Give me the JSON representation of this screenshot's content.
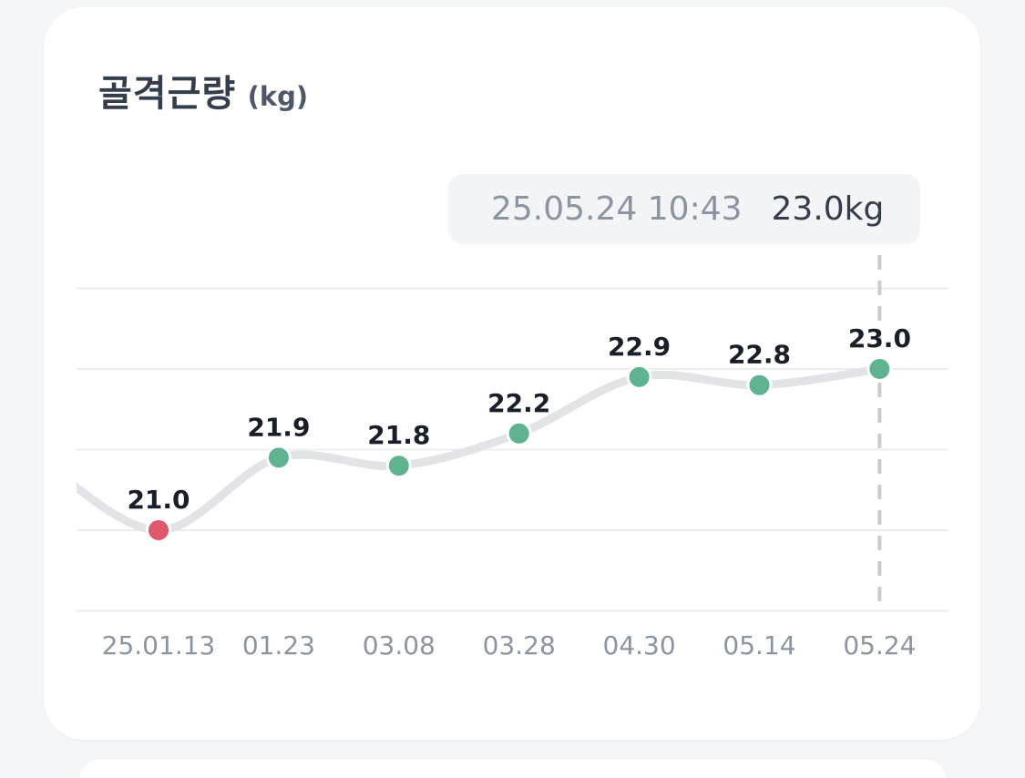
{
  "card": {
    "title": "골격근량",
    "unit": "(kg)"
  },
  "tooltip": {
    "datetime": "25.05.24 10:43",
    "value": "23.0kg"
  },
  "colors": {
    "line": "#e1e3e6",
    "gridline": "#ebedf0",
    "point_default": "#5fb391",
    "point_low": "#e0566a",
    "guide": "#c9cdd2",
    "label": "#191f28",
    "tick": "#8b95a1"
  },
  "chart_data": {
    "type": "line",
    "categories": [
      "25.01.13",
      "01.23",
      "03.08",
      "03.28",
      "04.30",
      "05.14",
      "05.24"
    ],
    "values": [
      21.0,
      21.9,
      21.8,
      22.2,
      22.9,
      22.8,
      23.0
    ],
    "labels": [
      "21.0",
      "21.9",
      "21.8",
      "22.2",
      "22.9",
      "22.8",
      "23.0"
    ],
    "highlight_low_index": 0,
    "selected_index": 6,
    "ylim": [
      20.0,
      23.5
    ],
    "ygrid": [
      20.0,
      21.0,
      22.0,
      23.0,
      24.0
    ],
    "grid": true,
    "xlabel": "",
    "ylabel": ""
  }
}
